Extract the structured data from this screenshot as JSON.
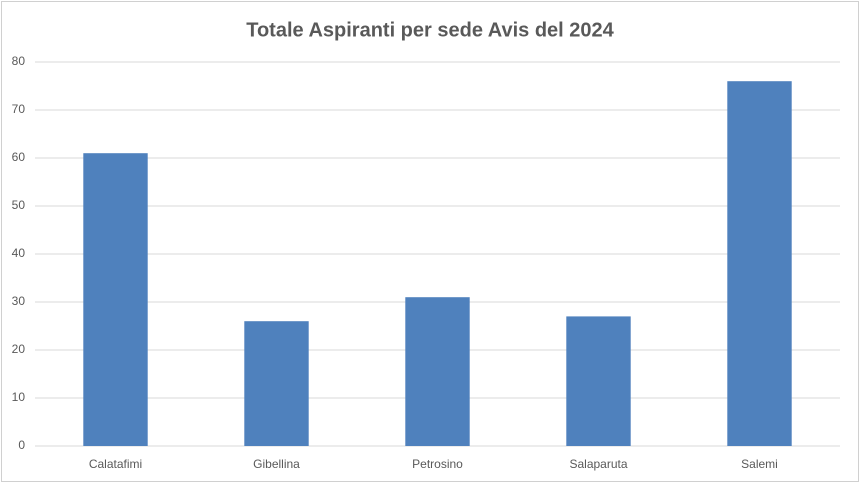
{
  "chart_data": {
    "type": "bar",
    "title": "Totale Aspiranti per sede Avis del 2024",
    "categories": [
      "Calatafimi",
      "Gibellina",
      "Petrosino",
      "Salaparuta",
      "Salemi"
    ],
    "values": [
      61,
      26,
      31,
      27,
      76
    ],
    "color": "#4f81bd",
    "ylim": [
      0,
      80
    ],
    "yticks": [
      0,
      10,
      20,
      30,
      40,
      50,
      60,
      70,
      80
    ],
    "grid": true
  }
}
